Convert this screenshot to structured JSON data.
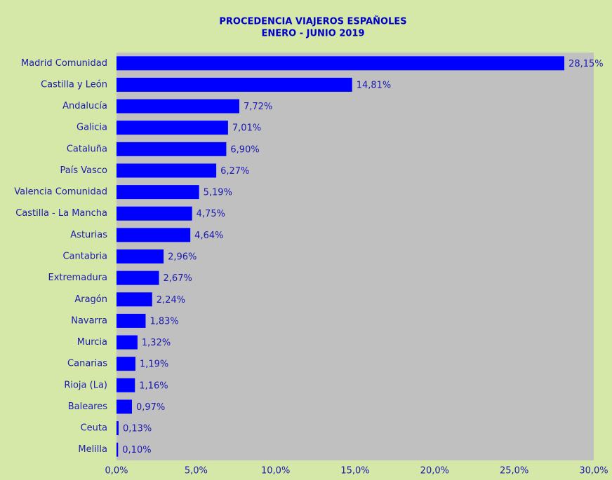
{
  "chart_data": {
    "type": "bar",
    "orientation": "horizontal",
    "title": "PROCEDENCIA VIAJEROS ESPAÑOLES",
    "subtitle": "ENERO - JUNIO 2019",
    "categories": [
      "Madrid Comunidad",
      "Castilla y León",
      "Andalucía",
      "Galicia",
      "Cataluña",
      "País Vasco",
      "Valencia Comunidad",
      "Castilla - La Mancha",
      "Asturias",
      "Cantabria",
      "Extremadura",
      "Aragón",
      "Navarra",
      "Murcia",
      "Canarias",
      "Rioja (La)",
      "Baleares",
      "Ceuta",
      "Melilla"
    ],
    "values": [
      28.15,
      14.81,
      7.72,
      7.01,
      6.9,
      6.27,
      5.19,
      4.75,
      4.64,
      2.96,
      2.67,
      2.24,
      1.83,
      1.32,
      1.19,
      1.16,
      0.97,
      0.13,
      0.1
    ],
    "value_labels": [
      "28,15%",
      "14,81%",
      "7,72%",
      "7,01%",
      "6,90%",
      "6,27%",
      "5,19%",
      "4,75%",
      "4,64%",
      "2,96%",
      "2,67%",
      "2,24%",
      "1,83%",
      "1,32%",
      "1,19%",
      "1,16%",
      "0,97%",
      "0,13%",
      "0,10%"
    ],
    "color": "#0000ff",
    "xlim": [
      0,
      30
    ],
    "xticks": [
      {
        "value": 0,
        "label": "0,0%"
      },
      {
        "value": 5,
        "label": "5,0%"
      },
      {
        "value": 10,
        "label": "10,0%"
      },
      {
        "value": 15,
        "label": "15,0%"
      },
      {
        "value": 20,
        "label": "20,0%"
      },
      {
        "value": 25,
        "label": "25,0%"
      },
      {
        "value": 30,
        "label": "30,0%"
      }
    ],
    "grid": false
  }
}
